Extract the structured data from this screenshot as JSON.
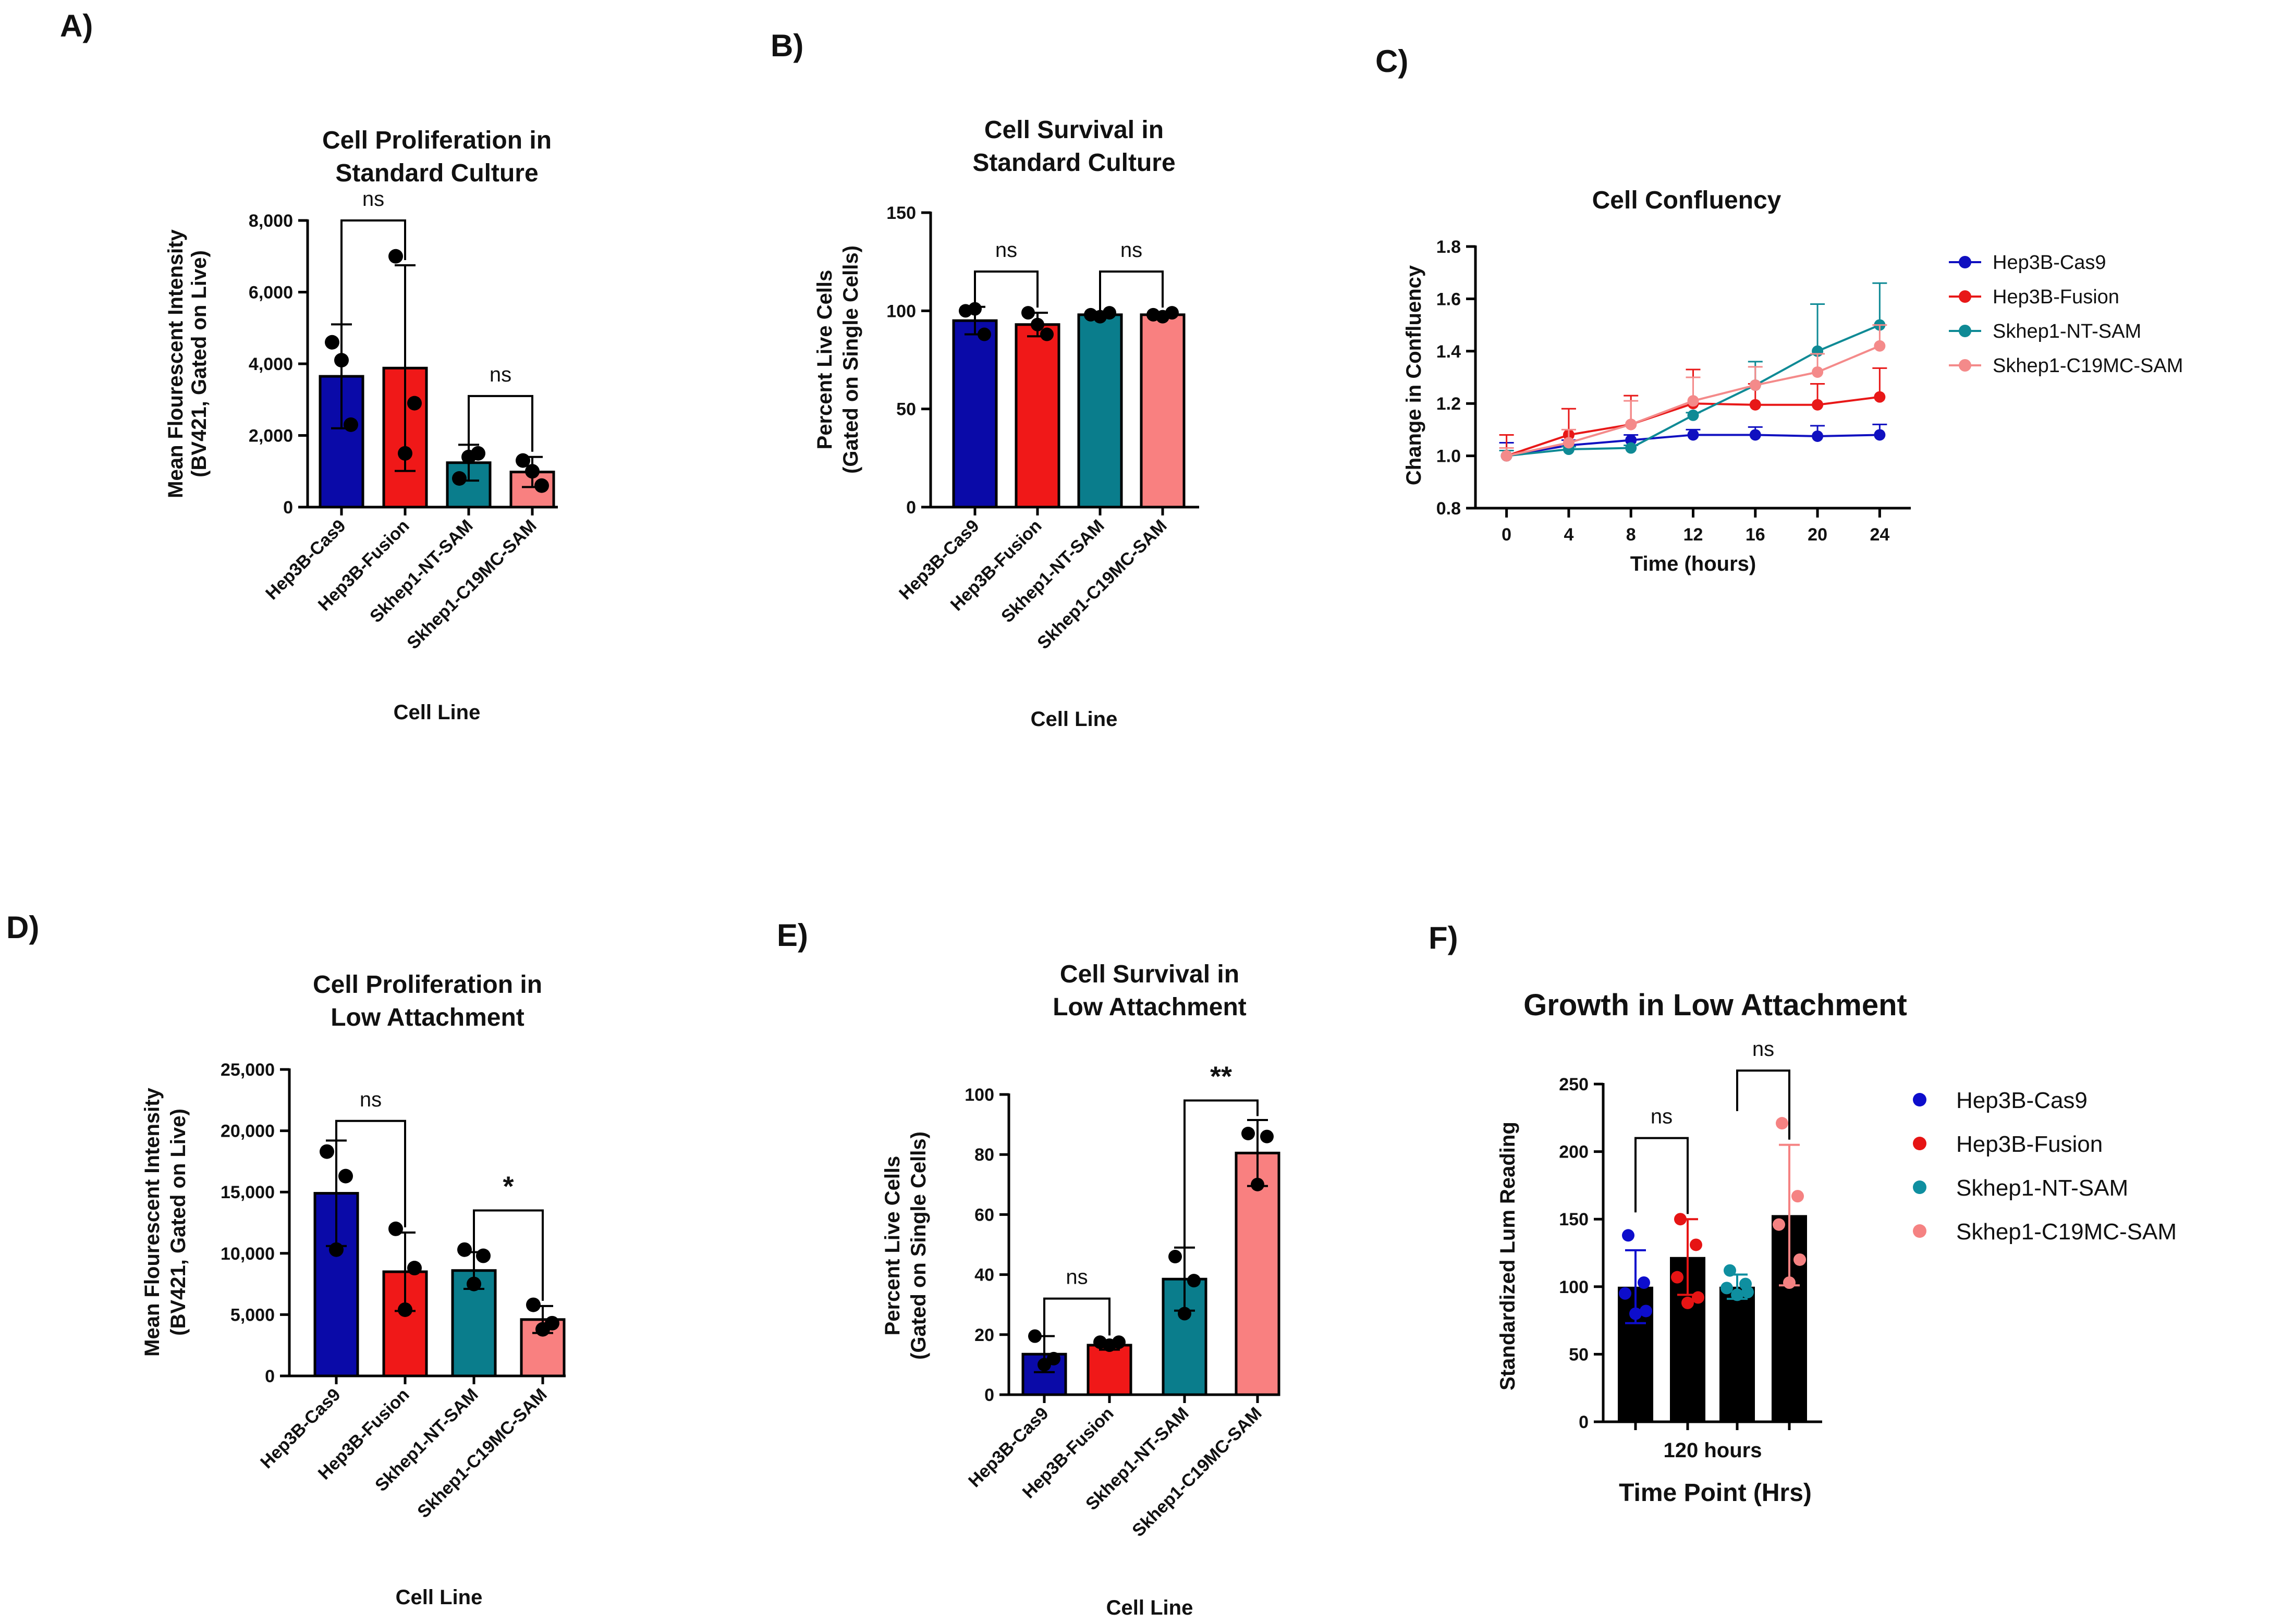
{
  "panel_labels": [
    "A)",
    "B)",
    "C)",
    "D)",
    "E)",
    "F)"
  ],
  "chart_data": [
    {
      "id": "A",
      "type": "bar",
      "title": [
        "Cell Proliferation in",
        "Standard Culture"
      ],
      "xlabel": "Cell Line",
      "ylabel": [
        "Mean Flourescent Intensity",
        "(BV421, Gated on Live)"
      ],
      "ylim": [
        0,
        8000
      ],
      "yticks": [
        0,
        2000,
        4000,
        6000,
        8000
      ],
      "ytick_labels": [
        "0",
        "2,000",
        "4,000",
        "6,000",
        "8,000"
      ],
      "categories": [
        "Hep3B-Cas9",
        "Hep3B-Fusion",
        "Skhep1-NT-SAM",
        "Skhep1-C19MC-SAM"
      ],
      "colors": [
        "#0a0aa8",
        "#f01818",
        "#0a7d8c",
        "#f98080"
      ],
      "values": [
        3650,
        3880,
        1240,
        980
      ],
      "errors": [
        1450,
        2870,
        500,
        420
      ],
      "points": [
        [
          4600,
          2300,
          4100
        ],
        [
          7000,
          2900,
          1500
        ],
        [
          800,
          1500,
          1400
        ],
        [
          1300,
          600,
          1000
        ]
      ],
      "comparisons": [
        {
          "from": 0,
          "to": 1,
          "label": "ns",
          "y": 8000
        },
        {
          "from": 2,
          "to": 3,
          "label": "ns",
          "y": 3100
        }
      ]
    },
    {
      "id": "B",
      "type": "bar",
      "title": [
        "Cell Survival in",
        "Standard Culture"
      ],
      "xlabel": "Cell Line",
      "ylabel": [
        "Percent Live Cells",
        "(Gated on Single Cells)"
      ],
      "ylim": [
        0,
        150
      ],
      "yticks": [
        0,
        50,
        100,
        150
      ],
      "ytick_labels": [
        "0",
        "50",
        "100",
        "150"
      ],
      "categories": [
        "Hep3B-Cas9",
        "Hep3B-Fusion",
        "Skhep1-NT-SAM",
        "Skhep1-C19MC-SAM"
      ],
      "colors": [
        "#0a0aa8",
        "#f01818",
        "#0a7d8c",
        "#f98080"
      ],
      "values": [
        95,
        93,
        98,
        98
      ],
      "errors": [
        7,
        6,
        1.5,
        1
      ],
      "points": [
        [
          100,
          88,
          101
        ],
        [
          99,
          88,
          93
        ],
        [
          98,
          99,
          97
        ],
        [
          98,
          99,
          97
        ]
      ],
      "comparisons": [
        {
          "from": 0,
          "to": 1,
          "label": "ns",
          "y": 120
        },
        {
          "from": 2,
          "to": 3,
          "label": "ns",
          "y": 120
        }
      ]
    },
    {
      "id": "C",
      "type": "line",
      "title": [
        "Cell Confluency"
      ],
      "xlabel": "Time (hours)",
      "ylabel": [
        "Change in Confluency"
      ],
      "xlim": [
        -2,
        26
      ],
      "ylim": [
        0.8,
        1.8
      ],
      "xticks": [
        0,
        4,
        8,
        12,
        16,
        20,
        24
      ],
      "yticks": [
        0.8,
        1.0,
        1.2,
        1.4,
        1.6,
        1.8
      ],
      "ytick_labels": [
        "0.8",
        "1.0",
        "1.2",
        "1.4",
        "1.6",
        "1.8"
      ],
      "x": [
        0,
        4,
        8,
        12,
        16,
        20,
        24
      ],
      "series": [
        {
          "name": "Hep3B-Cas9",
          "color": "#1010c0",
          "values": [
            1.0,
            1.04,
            1.06,
            1.08,
            1.08,
            1.075,
            1.08
          ],
          "errors": [
            0.05,
            0.02,
            0.02,
            0.02,
            0.03,
            0.04,
            0.04
          ]
        },
        {
          "name": "Hep3B-Fusion",
          "color": "#e81818",
          "values": [
            1.0,
            1.08,
            1.12,
            1.2,
            1.195,
            1.195,
            1.225
          ],
          "errors": [
            0.08,
            0.1,
            0.11,
            0.13,
            0.08,
            0.08,
            0.11
          ]
        },
        {
          "name": "Skhep1-NT-SAM",
          "color": "#0f8a95",
          "values": [
            1.0,
            1.025,
            1.03,
            1.155,
            1.27,
            1.4,
            1.5
          ],
          "errors": [
            0.02,
            0.01,
            0.01,
            0.01,
            0.09,
            0.18,
            0.16
          ]
        },
        {
          "name": "Skhep1-C19MC-SAM",
          "color": "#f48a8a",
          "values": [
            1.0,
            1.05,
            1.12,
            1.21,
            1.27,
            1.32,
            1.42
          ],
          "errors": [
            0.03,
            0.05,
            0.09,
            0.09,
            0.07,
            0.07,
            0.08
          ]
        }
      ]
    },
    {
      "id": "D",
      "type": "bar",
      "title": [
        "Cell Proliferation in",
        "Low Attachment"
      ],
      "xlabel": "Cell Line",
      "ylabel": [
        "Mean Flourescent Intensity",
        "(BV421, Gated on Live)"
      ],
      "ylim": [
        0,
        25000
      ],
      "yticks": [
        0,
        5000,
        10000,
        15000,
        20000,
        25000
      ],
      "ytick_labels": [
        "0",
        "5,000",
        "10,000",
        "15,000",
        "20,000",
        "25,000"
      ],
      "categories": [
        "Hep3B-Cas9",
        "Hep3B-Fusion",
        "Skhep1-NT-SAM",
        "Skhep1-C19MC-SAM"
      ],
      "colors": [
        "#0a0aa8",
        "#f01818",
        "#0a7d8c",
        "#f98080"
      ],
      "values": [
        14900,
        8500,
        8600,
        4600
      ],
      "errors": [
        4300,
        3200,
        1500,
        1100
      ],
      "points": [
        [
          18300,
          16300,
          10300
        ],
        [
          12000,
          8800,
          5400
        ],
        [
          10300,
          9800,
          7500
        ],
        [
          5800,
          4300,
          3800
        ]
      ],
      "comparisons": [
        {
          "from": 0,
          "to": 1,
          "label": "ns",
          "y": 20800,
          "marker_y": 17700
        },
        {
          "from": 2,
          "to": 3,
          "label": "*",
          "y": 13500
        }
      ]
    },
    {
      "id": "E",
      "type": "bar",
      "title": [
        "Cell Survival in",
        "Low Attachment"
      ],
      "xlabel": "Cell Line",
      "ylabel": [
        "Percent Live Cells",
        "(Gated on Single Cells)"
      ],
      "ylim": [
        0,
        100
      ],
      "yticks": [
        0,
        20,
        40,
        60,
        80,
        100
      ],
      "ytick_labels": [
        "0",
        "20",
        "40",
        "60",
        "80",
        "100"
      ],
      "categories": [
        "Hep3B-Cas9",
        "Hep3B-Fusion",
        "Skhep1-NT-SAM",
        "Skhep1-C19MC-SAM"
      ],
      "colors": [
        "#0a0aa8",
        "#f01818",
        "#0a7d8c",
        "#f98080"
      ],
      "values": [
        13.5,
        16.5,
        38.5,
        80.5
      ],
      "errors": [
        6,
        1.5,
        10.5,
        11
      ],
      "points": [
        [
          19.5,
          12,
          10
        ],
        [
          17.5,
          17.5,
          16.5
        ],
        [
          46,
          38,
          27
        ],
        [
          87,
          86,
          70
        ]
      ],
      "comparisons": [
        {
          "from": 0,
          "to": 1,
          "label": "ns",
          "y": 32
        },
        {
          "from": 2,
          "to": 3,
          "label": "**",
          "y": 98
        }
      ]
    },
    {
      "id": "F",
      "type": "bar",
      "title": [
        "Growth in Low Attachment"
      ],
      "xlabel": "Time Point (Hrs)",
      "group_label": "120 hours",
      "ylabel": [
        "Standardized Lum Reading"
      ],
      "ylim": [
        0,
        250
      ],
      "yticks": [
        0,
        50,
        100,
        150,
        200,
        250
      ],
      "ytick_labels": [
        "0",
        "50",
        "100",
        "150",
        "200",
        "250"
      ],
      "categories": [
        "Hep3B-Cas9",
        "Hep3B-Fusion",
        "Skhep1-NT-SAM",
        "Skhep1-C19MC-SAM"
      ],
      "colors": [
        "#0d0dcc",
        "#e61414",
        "#0f8fa0",
        "#f58282"
      ],
      "bar_color": "#000000",
      "values": [
        100,
        122,
        100,
        153
      ],
      "errors": [
        27,
        28,
        9,
        52
      ],
      "points": [
        [
          138,
          103,
          95,
          82,
          80
        ],
        [
          150,
          131,
          107,
          92,
          88
        ],
        [
          112,
          102,
          99,
          96,
          94
        ],
        [
          221,
          167,
          146,
          120,
          103
        ]
      ],
      "comparisons": [
        {
          "from": 0,
          "to": 1,
          "label": "ns",
          "y": 210,
          "marker_y": 155
        },
        {
          "from": 2,
          "to": 3,
          "label": "ns",
          "y": 260,
          "marker_y": 230
        }
      ]
    }
  ]
}
